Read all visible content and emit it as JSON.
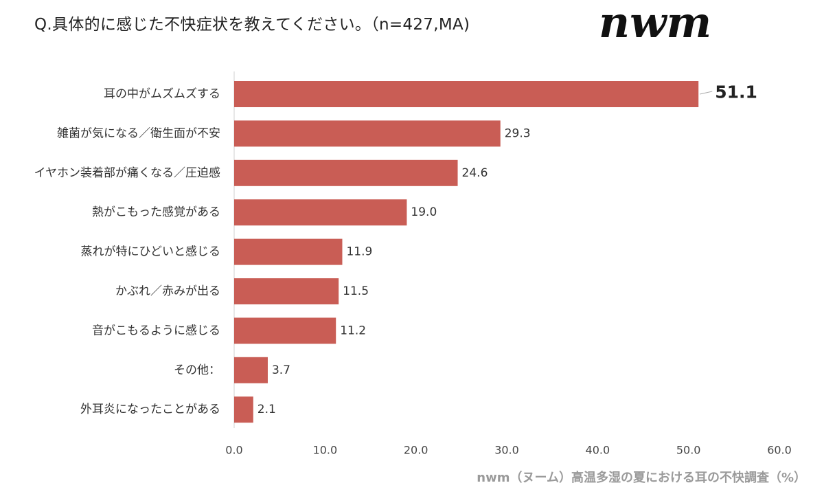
{
  "question": "Q.具体的に感じた不快症状を教えてください。（n=427,MA)",
  "logo": {
    "text": "nwm"
  },
  "footer": "nwm（ヌーム）高温多湿の夏における耳の不快調査（%）",
  "colors": {
    "bar": "#c95d55",
    "axis": "#d0d0d0",
    "leader": "#aaaaaa"
  },
  "chart_data": {
    "type": "bar",
    "orientation": "horizontal",
    "categories": [
      "耳の中がムズムズする",
      "雑菌が気になる／衛生面が不安",
      "イヤホン装着部が痛くなる／圧迫感",
      "熱がこもった感覚がある",
      "蒸れが特にひどいと感じる",
      "かぶれ／赤みが出る",
      "音がこもるように感じる",
      "その他：",
      "外耳炎になったことがある"
    ],
    "values": [
      51.1,
      29.3,
      24.6,
      19.0,
      11.9,
      11.5,
      11.2,
      3.7,
      2.1
    ],
    "value_labels": [
      "51.1",
      "29.3",
      "24.6",
      "19.0",
      "11.9",
      "11.5",
      "11.2",
      "3.7",
      "2.1"
    ],
    "xlim": [
      0,
      60
    ],
    "ticks": [
      0,
      10,
      20,
      30,
      40,
      50,
      60
    ],
    "tick_labels": [
      "0.0",
      "10.0",
      "20.0",
      "30.0",
      "40.0",
      "50.0",
      "60.0"
    ],
    "highlight_index": 0,
    "grid": false
  }
}
